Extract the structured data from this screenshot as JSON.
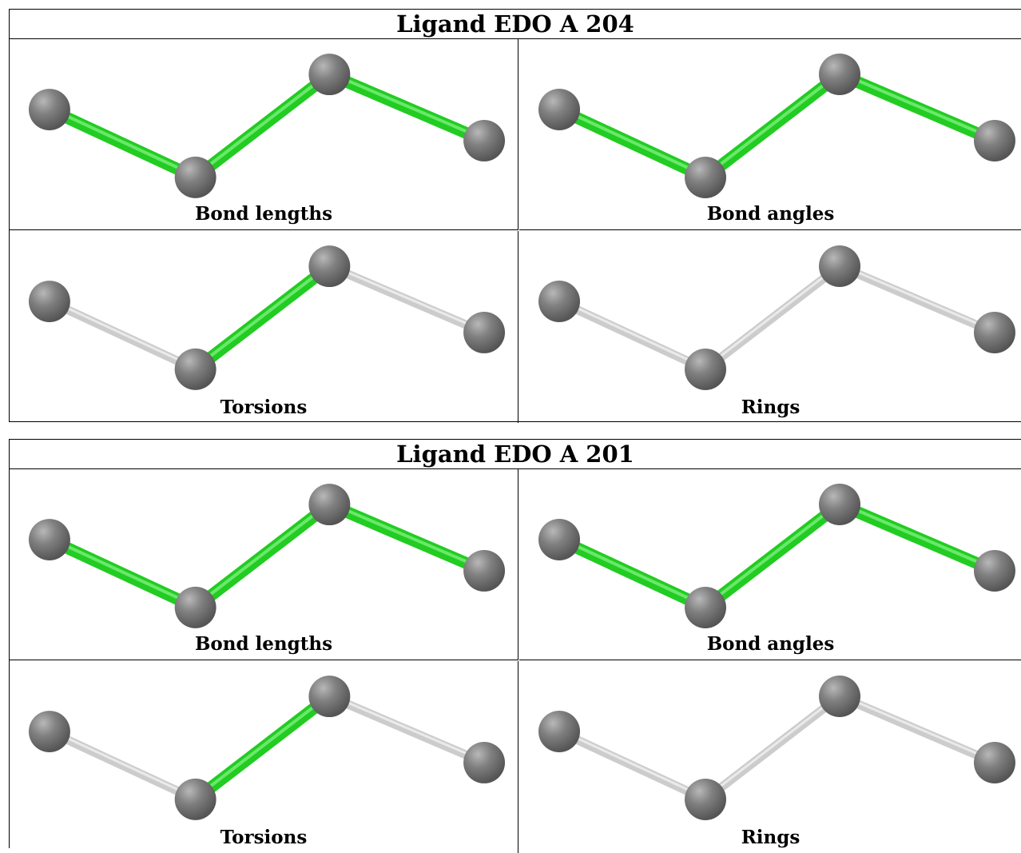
{
  "ligands": [
    {
      "title": "Ligand EDO A 204",
      "panels": [
        {
          "label": "Bond lengths",
          "bonds": [
            "highlighted",
            "highlighted",
            "highlighted"
          ]
        },
        {
          "label": "Bond angles",
          "bonds": [
            "highlighted",
            "highlighted",
            "highlighted"
          ]
        },
        {
          "label": "Torsions",
          "bonds": [
            "plain",
            "highlighted",
            "plain"
          ]
        },
        {
          "label": "Rings",
          "bonds": [
            "plain",
            "plain",
            "plain"
          ]
        }
      ]
    },
    {
      "title": "Ligand EDO A 201",
      "panels": [
        {
          "label": "Bond lengths",
          "bonds": [
            "highlighted",
            "highlighted",
            "highlighted"
          ]
        },
        {
          "label": "Bond angles",
          "bonds": [
            "highlighted",
            "highlighted",
            "highlighted"
          ]
        },
        {
          "label": "Torsions",
          "bonds": [
            "plain",
            "highlighted",
            "plain"
          ]
        },
        {
          "label": "Rings",
          "bonds": [
            "plain",
            "plain",
            "plain"
          ]
        }
      ]
    }
  ],
  "colors": {
    "highlighted_bond": "#22cc22",
    "plain_bond": "#cccccc",
    "atom": "#777777"
  }
}
